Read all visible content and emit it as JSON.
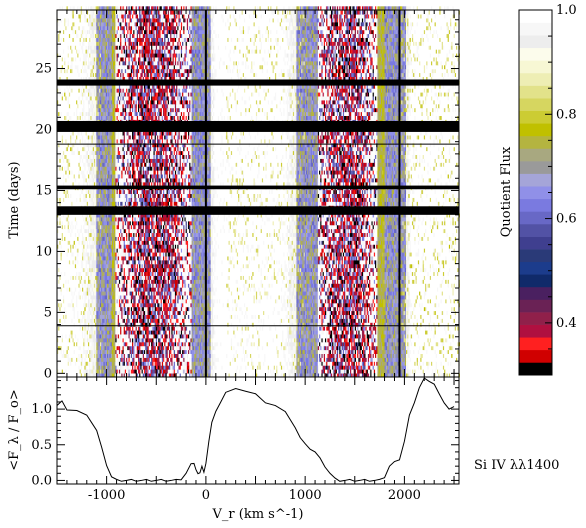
{
  "chart_data": [
    {
      "type": "heatmap",
      "ylabel": "Time (days)",
      "xlim": [
        -1500,
        2550
      ],
      "ylim": [
        -0.3,
        29.8
      ],
      "y_tick_labels": [
        "0",
        "5",
        "10",
        "15",
        "20",
        "25"
      ],
      "y_ticks": [
        0,
        5,
        10,
        15,
        20,
        25
      ],
      "data_gaps_days": [
        [
          13.0,
          13.7
        ],
        [
          15.1,
          15.4
        ],
        [
          19.8,
          20.7
        ],
        [
          23.6,
          24.1
        ]
      ],
      "reference_lines_days": [
        3.9,
        18.8
      ],
      "reference_lines_vr": [
        0,
        1950
      ],
      "absorption_troughs_vr": [
        [
          -1000,
          -50
        ],
        [
          1050,
          1800
        ]
      ],
      "colorbar": {
        "label": "Quotient Flux",
        "range": [
          0.3,
          1.0
        ],
        "tick_labels": [
          "0.4",
          "0.6",
          "0.8",
          "1.0"
        ],
        "ticks": [
          0.4,
          0.6,
          0.8,
          1.0
        ],
        "colors": [
          "#000000",
          "#d00000",
          "#ff2020",
          "#b01040",
          "#90204a",
          "#6a2255",
          "#4a2060",
          "#102a6a",
          "#1c3c8c",
          "#2a3a78",
          "#3f3f8f",
          "#5252a5",
          "#6868c6",
          "#7a7ae0",
          "#9090e8",
          "#a5a5d8",
          "#9a9a9a",
          "#a8a880",
          "#b4b440",
          "#c0c000",
          "#cccc33",
          "#d6d660",
          "#e2e28a",
          "#eeeeb4",
          "#f7f7d4",
          "#fcfcec",
          "#ededed",
          "#f7f7f7",
          "#ffffff"
        ]
      }
    },
    {
      "type": "line",
      "xlabel": "V_r (km s^-1)",
      "ylabel": "<F_λ / F_o>",
      "xlim": [
        -1500,
        2550
      ],
      "ylim": [
        -0.05,
        1.45
      ],
      "x_tick_labels": [
        "-1000",
        "0",
        "1000",
        "2000"
      ],
      "x_ticks": [
        -1000,
        0,
        1000,
        2000
      ],
      "y_tick_labels": [
        "0.0",
        "0.5",
        "1.0"
      ],
      "y_ticks": [
        0.0,
        0.5,
        1.0
      ],
      "annotation": "Si IV λλ1400",
      "series": [
        {
          "x": [
            -1500,
            -1450,
            -1400,
            -1300,
            -1200,
            -1150,
            -1100,
            -1050,
            -1000,
            -950,
            -900,
            -850,
            -800,
            -750,
            -700,
            -650,
            -600,
            -550,
            -500,
            -450,
            -400,
            -350,
            -300,
            -250,
            -200,
            -150,
            -120,
            -100,
            -80,
            -60,
            -40,
            -20,
            0,
            30,
            60,
            100,
            150,
            200,
            300,
            400,
            500,
            600,
            700,
            800,
            900,
            950,
            1000,
            1050,
            1100,
            1150,
            1200,
            1250,
            1300,
            1350,
            1400,
            1450,
            1500,
            1550,
            1600,
            1650,
            1700,
            1750,
            1800,
            1850,
            1900,
            1950,
            2000,
            2050,
            2100,
            2150,
            2200,
            2250,
            2300,
            2350,
            2400,
            2450,
            2500
          ],
          "y": [
            1.05,
            1.1,
            1.0,
            0.98,
            0.9,
            0.82,
            0.7,
            0.45,
            0.22,
            0.05,
            0.0,
            0.0,
            0.0,
            0.0,
            0.0,
            0.0,
            0.0,
            0.0,
            0.0,
            0.0,
            0.0,
            0.0,
            0.0,
            0.02,
            0.1,
            0.22,
            0.25,
            0.15,
            0.08,
            0.12,
            0.2,
            0.1,
            0.25,
            0.55,
            0.8,
            0.98,
            1.1,
            1.22,
            1.3,
            1.25,
            1.2,
            1.1,
            1.05,
            0.95,
            0.75,
            0.6,
            0.5,
            0.45,
            0.4,
            0.3,
            0.2,
            0.1,
            0.02,
            0.0,
            0.0,
            0.0,
            0.0,
            0.0,
            0.0,
            0.0,
            0.0,
            0.0,
            0.05,
            0.2,
            0.25,
            0.3,
            0.55,
            0.9,
            1.1,
            1.3,
            1.42,
            1.4,
            1.35,
            1.2,
            1.1,
            1.0,
            1.02
          ]
        }
      ]
    }
  ]
}
